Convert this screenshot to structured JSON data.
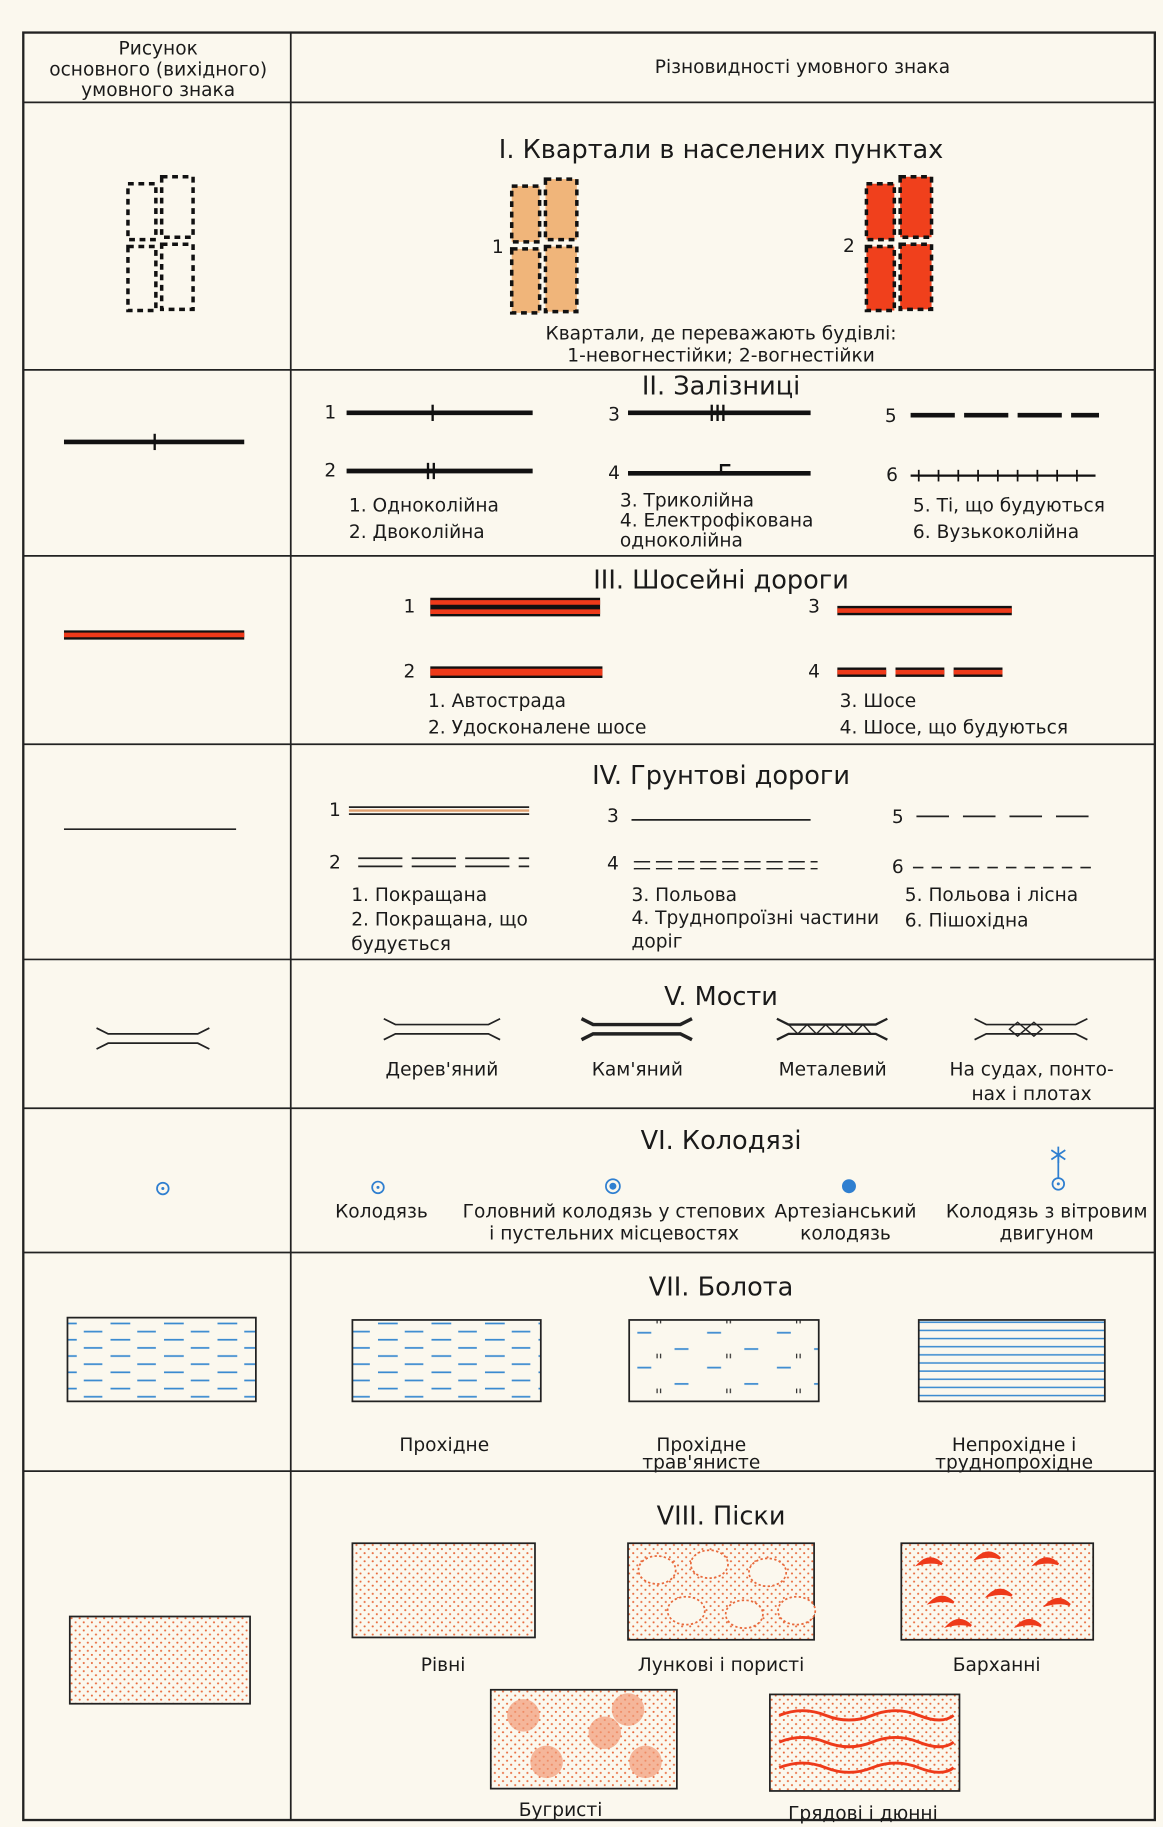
{
  "header": {
    "col1": [
      "Рисунок",
      "основного (вихідного)",
      "умовного знака"
    ],
    "col2": "Різновидності умовного знака"
  },
  "sections": [
    {
      "title": "I.  Квартали в населених пунктах",
      "numbers": [
        "1",
        "2"
      ],
      "captions": [
        [
          "Квартали, де переважають будівлі:",
          "1-невогнестійки; 2-вогнестійки"
        ]
      ]
    },
    {
      "title": "II.  Залізниці",
      "numbers": [
        "1",
        "2",
        "3",
        "4",
        "5",
        "6"
      ],
      "captions": [
        [
          "1. Одноколійна",
          "2. Двоколійна"
        ],
        [
          "3. Триколійна",
          "4. Електрофікована",
          "одноколійна"
        ],
        [
          "5. Ті, що будуються",
          "6. Вузькоколійна"
        ]
      ]
    },
    {
      "title": "III. Шосейні дороги",
      "numbers": [
        "1",
        "2",
        "3",
        "4"
      ],
      "captions": [
        [
          "1. Автострада",
          "2. Удосконалене шосе"
        ],
        [
          "3. Шосе",
          "4. Шосе, що будуються"
        ]
      ]
    },
    {
      "title": "IV.  Грунтові дороги",
      "numbers": [
        "1",
        "2",
        "3",
        "4",
        "5",
        "6"
      ],
      "captions": [
        [
          "1. Покращана",
          "2. Покращана, що",
          "будується"
        ],
        [
          "3. Польова",
          "4. Труднопроїзні частини",
          "доріг"
        ],
        [
          "5. Польова і лісна",
          "6. Пішохідна"
        ]
      ]
    },
    {
      "title": "V.  Мости",
      "numbers": [],
      "captions": [
        [
          "Дерев'яний"
        ],
        [
          "Кам'яний"
        ],
        [
          "Металевий"
        ],
        [
          "На судах, понто-",
          "нах і плотах"
        ]
      ]
    },
    {
      "title": "VI. Колодязі",
      "numbers": [],
      "captions": [
        [
          "Колодязь"
        ],
        [
          "Головний колодязь у степових",
          "і пустельних місцевостях"
        ],
        [
          "Артезіанський",
          "колодязь"
        ],
        [
          "Колодязь з вітровим",
          "двигуном"
        ]
      ]
    },
    {
      "title": "VII. Болота",
      "numbers": [],
      "captions": [
        [
          "Прохідне"
        ],
        [
          "Прохідне",
          "трав'янисте"
        ],
        [
          "Непрохідне і",
          "труднопрохідне"
        ]
      ]
    },
    {
      "title": "VIII. Піски",
      "numbers": [],
      "captions": [
        [
          "Рівні"
        ],
        [
          "Лункові і пористі"
        ],
        [
          "Барханні"
        ],
        [
          "Бугристі"
        ],
        [
          "Грядові і дюнні"
        ]
      ]
    }
  ]
}
